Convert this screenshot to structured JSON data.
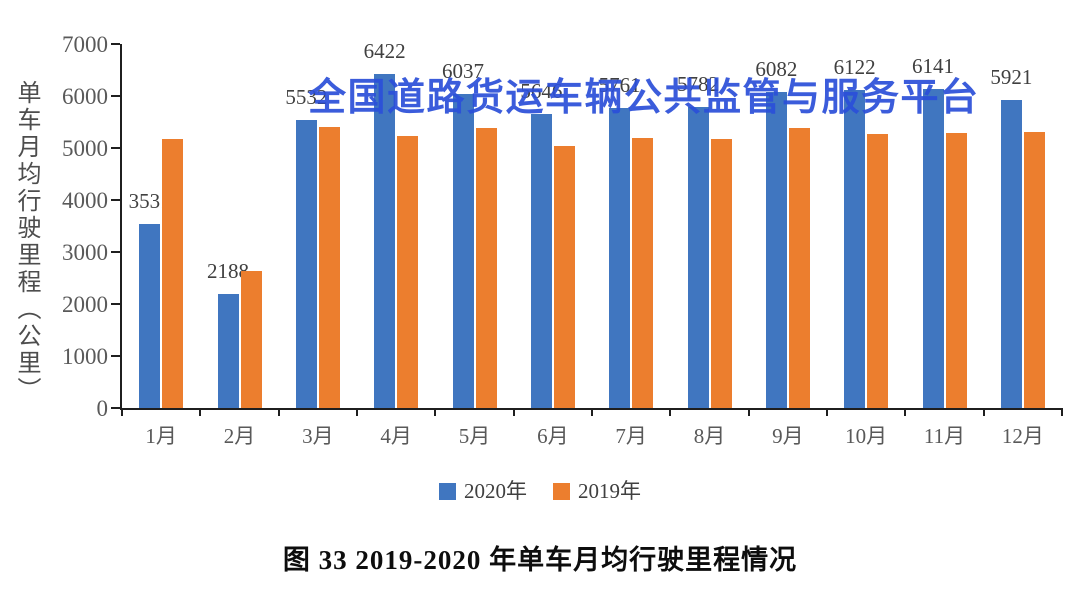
{
  "watermark": {
    "text": "全国道路货运车辆公共监管与服务平台",
    "color": "#2b4fd9"
  },
  "caption": {
    "text": "图 33  2019-2020 年单车月均行驶里程情况"
  },
  "chart_data": {
    "type": "bar",
    "title": "图 33 2019-2020 年单车月均行驶里程情况",
    "categories": [
      "1月",
      "2月",
      "3月",
      "4月",
      "5月",
      "6月",
      "7月",
      "8月",
      "9月",
      "10月",
      "11月",
      "12月"
    ],
    "series": [
      {
        "name": "2020年",
        "color": "#4076c0",
        "values": [
          3531,
          2188,
          5532,
          6422,
          6037,
          5646,
          5761,
          5782,
          6082,
          6122,
          6141,
          5921
        ],
        "data_labels": true
      },
      {
        "name": "2019年",
        "color": "#ec7e2e",
        "values": [
          5180,
          2630,
          5400,
          5240,
          5390,
          5030,
          5200,
          5170,
          5390,
          5260,
          5280,
          5310
        ],
        "data_labels": false,
        "values_estimated_from_pixels": true
      }
    ],
    "xlabel": "",
    "ylabel": "单车月均行驶里程（公里）",
    "ylim": [
      0,
      7000
    ],
    "yticks": [
      0,
      1000,
      2000,
      3000,
      4000,
      5000,
      6000,
      7000
    ],
    "grid": false,
    "legend_position": "bottom"
  }
}
